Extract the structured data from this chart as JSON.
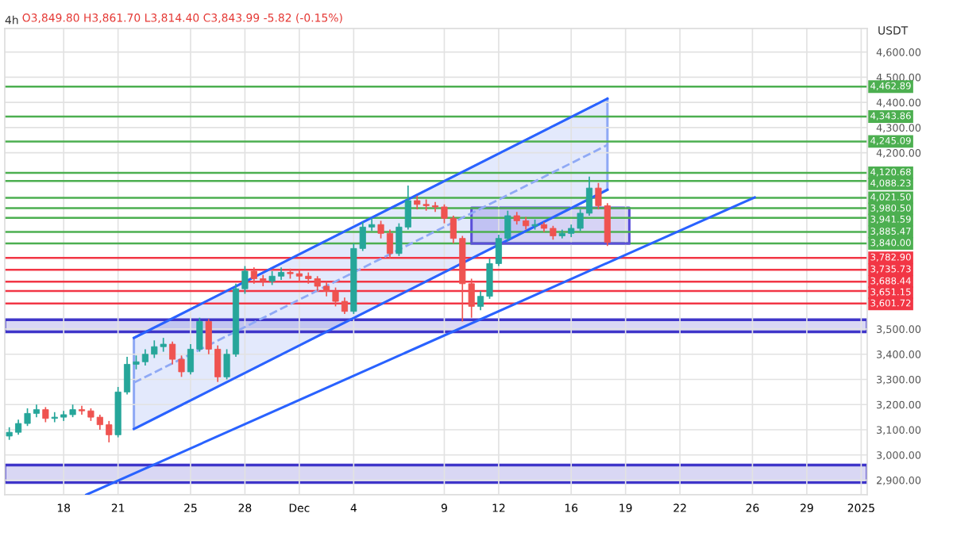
{
  "chart_data": {
    "type": "candlestick",
    "title": "4h",
    "ylabel": "USDT",
    "annotations": [
      "O3,849.80 H3,861.70 L3,814.40 C3,843.99 -5.82 (-0.15%)"
    ],
    "x": [
      "2024-11-15T00:00",
      "2024-11-15T12:00",
      "2024-11-16T00:00",
      "2024-11-16T12:00",
      "2024-11-17T00:00",
      "2024-11-17T12:00",
      "2024-11-18T00:00",
      "2024-11-18T12:00",
      "2024-11-19T00:00",
      "2024-11-19T12:00",
      "2024-11-20T00:00",
      "2024-11-20T12:00",
      "2024-11-21T00:00",
      "2024-11-21T12:00",
      "2024-11-22T00:00",
      "2024-11-22T12:00",
      "2024-11-23T00:00",
      "2024-11-23T12:00",
      "2024-11-24T00:00",
      "2024-11-24T12:00",
      "2024-11-25T00:00",
      "2024-11-25T12:00",
      "2024-11-26T00:00",
      "2024-11-26T12:00",
      "2024-11-27T00:00",
      "2024-11-27T12:00",
      "2024-11-28T00:00",
      "2024-11-28T12:00",
      "2024-11-29T00:00",
      "2024-11-29T12:00",
      "2024-11-30T00:00",
      "2024-11-30T12:00",
      "2024-12-01T00:00",
      "2024-12-01T12:00",
      "2024-12-02T00:00",
      "2024-12-02T12:00",
      "2024-12-03T00:00",
      "2024-12-03T12:00",
      "2024-12-04T00:00",
      "2024-12-04T12:00",
      "2024-12-05T00:00",
      "2024-12-05T12:00",
      "2024-12-06T00:00",
      "2024-12-06T12:00",
      "2024-12-07T00:00",
      "2024-12-07T12:00",
      "2024-12-08T00:00",
      "2024-12-08T12:00",
      "2024-12-09T00:00",
      "2024-12-09T12:00",
      "2024-12-10T00:00",
      "2024-12-10T12:00",
      "2024-12-11T00:00",
      "2024-12-11T12:00",
      "2024-12-12T00:00",
      "2024-12-12T12:00",
      "2024-12-13T00:00",
      "2024-12-13T12:00",
      "2024-12-14T00:00",
      "2024-12-14T12:00",
      "2024-12-15T00:00",
      "2024-12-15T12:00",
      "2024-12-16T00:00",
      "2024-12-16T12:00",
      "2024-12-17T00:00",
      "2024-12-17T12:00",
      "2024-12-18T00:00"
    ],
    "ohlc": [
      [
        3075,
        3110,
        3060,
        3090
      ],
      [
        3090,
        3140,
        3080,
        3125
      ],
      [
        3125,
        3185,
        3115,
        3165
      ],
      [
        3165,
        3200,
        3150,
        3180
      ],
      [
        3180,
        3190,
        3130,
        3145
      ],
      [
        3145,
        3170,
        3130,
        3150
      ],
      [
        3150,
        3175,
        3135,
        3160
      ],
      [
        3160,
        3200,
        3150,
        3180
      ],
      [
        3180,
        3195,
        3160,
        3175
      ],
      [
        3175,
        3185,
        3135,
        3150
      ],
      [
        3150,
        3160,
        3100,
        3120
      ],
      [
        3120,
        3135,
        3050,
        3080
      ],
      [
        3080,
        3270,
        3070,
        3250
      ],
      [
        3250,
        3390,
        3240,
        3360
      ],
      [
        3360,
        3395,
        3340,
        3370
      ],
      [
        3370,
        3420,
        3355,
        3400
      ],
      [
        3400,
        3455,
        3385,
        3430
      ],
      [
        3430,
        3465,
        3410,
        3440
      ],
      [
        3440,
        3450,
        3360,
        3380
      ],
      [
        3380,
        3395,
        3310,
        3330
      ],
      [
        3330,
        3440,
        3320,
        3420
      ],
      [
        3420,
        3545,
        3410,
        3530
      ],
      [
        3530,
        3540,
        3400,
        3420
      ],
      [
        3420,
        3435,
        3290,
        3310
      ],
      [
        3310,
        3420,
        3300,
        3400
      ],
      [
        3400,
        3680,
        3390,
        3660
      ],
      [
        3660,
        3750,
        3640,
        3730
      ],
      [
        3730,
        3745,
        3680,
        3700
      ],
      [
        3700,
        3715,
        3670,
        3690
      ],
      [
        3690,
        3730,
        3675,
        3710
      ],
      [
        3710,
        3745,
        3695,
        3725
      ],
      [
        3725,
        3740,
        3700,
        3720
      ],
      [
        3720,
        3735,
        3690,
        3710
      ],
      [
        3710,
        3725,
        3680,
        3700
      ],
      [
        3700,
        3710,
        3650,
        3670
      ],
      [
        3670,
        3690,
        3630,
        3650
      ],
      [
        3650,
        3665,
        3590,
        3610
      ],
      [
        3610,
        3625,
        3560,
        3570
      ],
      [
        3570,
        3840,
        3560,
        3820
      ],
      [
        3820,
        3925,
        3810,
        3905
      ],
      [
        3905,
        3940,
        3890,
        3915
      ],
      [
        3915,
        3930,
        3860,
        3880
      ],
      [
        3880,
        3895,
        3780,
        3800
      ],
      [
        3800,
        3920,
        3790,
        3905
      ],
      [
        3905,
        4070,
        3895,
        4010
      ],
      [
        4010,
        4030,
        3975,
        3995
      ],
      [
        3995,
        4015,
        3970,
        3990
      ],
      [
        3990,
        4005,
        3965,
        3985
      ],
      [
        3985,
        3995,
        3920,
        3940
      ],
      [
        3940,
        3950,
        3840,
        3860
      ],
      [
        3860,
        3870,
        3530,
        3680
      ],
      [
        3680,
        3700,
        3545,
        3590
      ],
      [
        3590,
        3650,
        3575,
        3630
      ],
      [
        3630,
        3780,
        3620,
        3760
      ],
      [
        3760,
        3875,
        3750,
        3860
      ],
      [
        3860,
        3970,
        3850,
        3950
      ],
      [
        3950,
        3965,
        3915,
        3930
      ],
      [
        3930,
        3945,
        3895,
        3910
      ],
      [
        3910,
        3935,
        3895,
        3915
      ],
      [
        3915,
        3925,
        3885,
        3900
      ],
      [
        3900,
        3910,
        3855,
        3870
      ],
      [
        3870,
        3895,
        3860,
        3880
      ],
      [
        3880,
        3915,
        3865,
        3900
      ],
      [
        3900,
        3975,
        3890,
        3960
      ],
      [
        3960,
        4105,
        3950,
        4060
      ],
      [
        4060,
        4080,
        3975,
        3990
      ],
      [
        3990,
        4000,
        3830,
        3844
      ]
    ],
    "colors": [
      "#26a69a",
      "#26a69a",
      "#26a69a",
      "#26a69a",
      "#ef5350",
      "#26a69a",
      "#26a69a",
      "#26a69a",
      "#ef5350",
      "#ef5350",
      "#ef5350",
      "#ef5350",
      "#26a69a",
      "#26a69a",
      "#26a69a",
      "#26a69a",
      "#26a69a",
      "#26a69a",
      "#ef5350",
      "#ef5350",
      "#26a69a",
      "#26a69a",
      "#ef5350",
      "#ef5350",
      "#26a69a",
      "#26a69a",
      "#26a69a",
      "#ef5350",
      "#ef5350",
      "#26a69a",
      "#26a69a",
      "#ef5350",
      "#ef5350",
      "#ef5350",
      "#ef5350",
      "#ef5350",
      "#ef5350",
      "#ef5350",
      "#26a69a",
      "#26a69a",
      "#26a69a",
      "#ef5350",
      "#ef5350",
      "#26a69a",
      "#26a69a",
      "#ef5350",
      "#ef5350",
      "#ef5350",
      "#ef5350",
      "#ef5350",
      "#ef5350",
      "#ef5350",
      "#26a69a",
      "#26a69a",
      "#26a69a",
      "#26a69a",
      "#ef5350",
      "#ef5350",
      "#26a69a",
      "#ef5350",
      "#ef5350",
      "#26a69a",
      "#26a69a",
      "#26a69a",
      "#26a69a",
      "#ef5350",
      "#ef5350"
    ],
    "series": [
      {
        "type": "line",
        "x": [
          "2024-11-21T21:00",
          "2024-12-18T00:00"
        ],
        "values": [
          3287,
          4231
        ],
        "lower": [
          3103,
          4053
        ],
        "upper": [
          3465,
          4415
        ],
        "color": "#8fa9f5",
        "line_style": "dashed"
      },
      {
        "type": "line",
        "x": [
          "2024-11-21T21:00",
          "2024-12-18T00:00"
        ],
        "values": [
          3465,
          4415
        ],
        "color": "#2962ff",
        "line_style": "solid"
      },
      {
        "type": "line",
        "x": [
          "2024-11-21T21:00",
          "2024-12-18T00:00"
        ],
        "values": [
          3103,
          4053
        ],
        "color": "#2962ff",
        "line_style": "solid"
      },
      {
        "type": "line",
        "x": [
          "2024-11-19T06:00",
          "2024-12-26T03:00"
        ],
        "values": [
          2842,
          4023
        ],
        "color": "#2962ff",
        "line_style": "solid"
      },
      {
        "type": "line",
        "x": [
          "2024-12-10T12:00",
          "2024-12-19T05:00"
        ],
        "values": [
          3840,
          3840
        ],
        "lower": [
          3840,
          3840
        ],
        "upper": [
          3982,
          3982
        ],
        "color": "#5b4fd9",
        "line_style": "solid"
      }
    ],
    "ref_lines": [
      {
        "axis": "y",
        "value": 4462.89,
        "label": "4,462.89",
        "color": "#4caf50"
      },
      {
        "axis": "y",
        "value": 4343.86,
        "label": "4,343.86",
        "color": "#4caf50"
      },
      {
        "axis": "y",
        "value": 4245.09,
        "label": "4,245.09",
        "color": "#4caf50"
      },
      {
        "axis": "y",
        "value": 4120.68,
        "label": "4,120.68",
        "color": "#4caf50"
      },
      {
        "axis": "y",
        "value": 4088.23,
        "label": "4,088.23",
        "color": "#4caf50"
      },
      {
        "axis": "y",
        "value": 4021.5,
        "label": "4,021.50",
        "color": "#4caf50"
      },
      {
        "axis": "y",
        "value": 3980.5,
        "label": "3,980.50",
        "color": "#4caf50"
      },
      {
        "axis": "y",
        "value": 3941.59,
        "label": "3,941.59",
        "color": "#4caf50"
      },
      {
        "axis": "y",
        "value": 3885.47,
        "label": "3,885.47",
        "color": "#4caf50"
      },
      {
        "axis": "y",
        "value": 3840.0,
        "label": "3,840.00",
        "color": "#4caf50"
      },
      {
        "axis": "y",
        "value": 3782.9,
        "label": "3,782.90",
        "color": "#f23645"
      },
      {
        "axis": "y",
        "value": 3735.73,
        "label": "3,735.73",
        "color": "#f23645"
      },
      {
        "axis": "y",
        "value": 3688.44,
        "label": "3,688.44",
        "color": "#f23645"
      },
      {
        "axis": "y",
        "value": 3651.15,
        "label": "3,651.15",
        "color": "#f23645"
      },
      {
        "axis": "y",
        "value": 3601.72,
        "label": "3,601.72",
        "color": "#f23645"
      }
    ],
    "bands": [
      {
        "axis": "y",
        "from": 3489,
        "to": 3537,
        "color": "#3f35c9"
      },
      {
        "axis": "y",
        "from": 2890,
        "to": 2960,
        "color": "#3f35c9"
      }
    ],
    "legend": "right",
    "xlim": [
      "2024-11-14T18:00",
      "2025-01-01T08:00"
    ],
    "xticks": [
      {
        "value": "2024-11-18",
        "label": "18"
      },
      {
        "value": "2024-11-21",
        "label": "21"
      },
      {
        "value": "2024-11-25",
        "label": "25"
      },
      {
        "value": "2024-11-28",
        "label": "28"
      },
      {
        "value": "2024-12-01",
        "label": "Dec"
      },
      {
        "value": "2024-12-04",
        "label": "4"
      },
      {
        "value": "2024-12-09",
        "label": "9"
      },
      {
        "value": "2024-12-12",
        "label": "12"
      },
      {
        "value": "2024-12-16",
        "label": "16"
      },
      {
        "value": "2024-12-19",
        "label": "19"
      },
      {
        "value": "2024-12-22",
        "label": "22"
      },
      {
        "value": "2024-12-26",
        "label": "26"
      },
      {
        "value": "2024-12-29",
        "label": "29"
      },
      {
        "value": "2025-01-01",
        "label": "2025"
      }
    ],
    "ylim": [
      2842,
      4694
    ],
    "yticks": [
      {
        "value": 2900,
        "label": "2,900.00"
      },
      {
        "value": 3000,
        "label": "3,000.00"
      },
      {
        "value": 3100,
        "label": "3,100.00"
      },
      {
        "value": 3200,
        "label": "3,200.00"
      },
      {
        "value": 3300,
        "label": "3,300.00"
      },
      {
        "value": 3400,
        "label": "3,400.00"
      },
      {
        "value": 3500,
        "label": "3,500.00"
      },
      {
        "value": 4200,
        "label": "4,200.00"
      },
      {
        "value": 4300,
        "label": "4,300.00"
      },
      {
        "value": 4400,
        "label": "4,400.00"
      },
      {
        "value": 4500,
        "label": "4,500.00"
      },
      {
        "value": 4600,
        "label": "4,600.00"
      }
    ],
    "grid": true
  }
}
